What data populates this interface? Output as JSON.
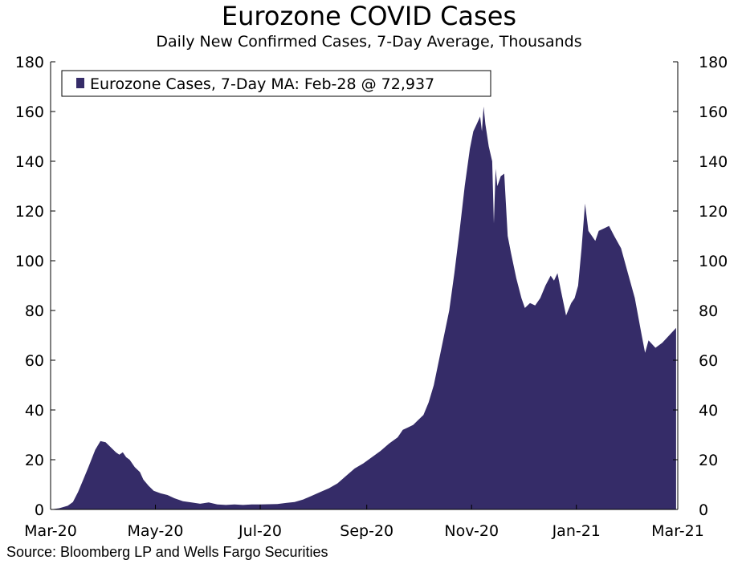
{
  "chart_data": {
    "type": "area",
    "title": "Eurozone COVID Cases",
    "subtitle": "Daily New Confirmed Cases, 7-Day Average, Thousands",
    "source": "Source: Bloomberg LP and Wells Fargo Securities",
    "legend": {
      "label": "Eurozone Cases, 7-Day MA: Feb-28 @ 72,937",
      "placement": "top-left"
    },
    "color": "#352c68",
    "ylim": [
      0,
      180
    ],
    "yticks": [
      "0",
      "20",
      "40",
      "60",
      "80",
      "100",
      "120",
      "140",
      "160",
      "180"
    ],
    "xlim": [
      "2020-03-01",
      "2021-03-01"
    ],
    "xticks": [
      {
        "date": "2020-03-01",
        "label": "Mar-20"
      },
      {
        "date": "2020-05-01",
        "label": "May-20"
      },
      {
        "date": "2020-07-01",
        "label": "Jul-20"
      },
      {
        "date": "2020-09-01",
        "label": "Sep-20"
      },
      {
        "date": "2020-11-01",
        "label": "Nov-20"
      },
      {
        "date": "2021-01-01",
        "label": "Jan-21"
      },
      {
        "date": "2021-03-01",
        "label": "Mar-21"
      }
    ],
    "grid": false,
    "series": [
      {
        "name": "Eurozone Cases, 7-Day MA",
        "points": [
          [
            "2020-03-01",
            0
          ],
          [
            "2020-03-06",
            0.5
          ],
          [
            "2020-03-11",
            1.5
          ],
          [
            "2020-03-14",
            3
          ],
          [
            "2020-03-17",
            7
          ],
          [
            "2020-03-20",
            12
          ],
          [
            "2020-03-23",
            17
          ],
          [
            "2020-03-27",
            24
          ],
          [
            "2020-03-30",
            27.5
          ],
          [
            "2020-04-02",
            27
          ],
          [
            "2020-04-05",
            25
          ],
          [
            "2020-04-08",
            23
          ],
          [
            "2020-04-10",
            22
          ],
          [
            "2020-04-12",
            23
          ],
          [
            "2020-04-14",
            21
          ],
          [
            "2020-04-16",
            20
          ],
          [
            "2020-04-19",
            17
          ],
          [
            "2020-04-22",
            15
          ],
          [
            "2020-04-24",
            12
          ],
          [
            "2020-04-27",
            9.5
          ],
          [
            "2020-04-30",
            7.5
          ],
          [
            "2020-05-04",
            6.5
          ],
          [
            "2020-05-08",
            5.8
          ],
          [
            "2020-05-12",
            4.5
          ],
          [
            "2020-05-17",
            3.3
          ],
          [
            "2020-05-22",
            2.8
          ],
          [
            "2020-05-27",
            2.3
          ],
          [
            "2020-06-01",
            2.8
          ],
          [
            "2020-06-06",
            2.0
          ],
          [
            "2020-06-11",
            1.8
          ],
          [
            "2020-06-16",
            2.0
          ],
          [
            "2020-06-21",
            1.8
          ],
          [
            "2020-06-26",
            2.0
          ],
          [
            "2020-07-01",
            2.0
          ],
          [
            "2020-07-06",
            2.1
          ],
          [
            "2020-07-11",
            2.2
          ],
          [
            "2020-07-16",
            2.6
          ],
          [
            "2020-07-21",
            3.0
          ],
          [
            "2020-07-26",
            4.0
          ],
          [
            "2020-07-31",
            5.5
          ],
          [
            "2020-08-05",
            7.0
          ],
          [
            "2020-08-10",
            8.5
          ],
          [
            "2020-08-15",
            10.5
          ],
          [
            "2020-08-20",
            13.5
          ],
          [
            "2020-08-25",
            16.5
          ],
          [
            "2020-08-30",
            18.5
          ],
          [
            "2020-09-04",
            21
          ],
          [
            "2020-09-09",
            23.5
          ],
          [
            "2020-09-14",
            26.5
          ],
          [
            "2020-09-19",
            29
          ],
          [
            "2020-09-22",
            32
          ],
          [
            "2020-09-25",
            33
          ],
          [
            "2020-09-28",
            34
          ],
          [
            "2020-10-01",
            36
          ],
          [
            "2020-10-04",
            38
          ],
          [
            "2020-10-07",
            43
          ],
          [
            "2020-10-10",
            50
          ],
          [
            "2020-10-13",
            60
          ],
          [
            "2020-10-16",
            70
          ],
          [
            "2020-10-19",
            80
          ],
          [
            "2020-10-22",
            95
          ],
          [
            "2020-10-25",
            112
          ],
          [
            "2020-10-28",
            130
          ],
          [
            "2020-10-31",
            145
          ],
          [
            "2020-11-02",
            152
          ],
          [
            "2020-11-04",
            155
          ],
          [
            "2020-11-06",
            158
          ],
          [
            "2020-11-07",
            152
          ],
          [
            "2020-11-08",
            162
          ],
          [
            "2020-11-09",
            155
          ],
          [
            "2020-11-11",
            146
          ],
          [
            "2020-11-13",
            140
          ],
          [
            "2020-11-14",
            115
          ],
          [
            "2020-11-15",
            137
          ],
          [
            "2020-11-16",
            130
          ],
          [
            "2020-11-18",
            134
          ],
          [
            "2020-11-20",
            135
          ],
          [
            "2020-11-22",
            110
          ],
          [
            "2020-11-24",
            103
          ],
          [
            "2020-11-27",
            93
          ],
          [
            "2020-11-30",
            85
          ],
          [
            "2020-12-02",
            81
          ],
          [
            "2020-12-05",
            83
          ],
          [
            "2020-12-08",
            82
          ],
          [
            "2020-12-11",
            85
          ],
          [
            "2020-12-14",
            90
          ],
          [
            "2020-12-17",
            94
          ],
          [
            "2020-12-19",
            92
          ],
          [
            "2020-12-21",
            95
          ],
          [
            "2020-12-23",
            88
          ],
          [
            "2020-12-26",
            78
          ],
          [
            "2020-12-29",
            83
          ],
          [
            "2020-12-31",
            85
          ],
          [
            "2021-01-02",
            90
          ],
          [
            "2021-01-04",
            105
          ],
          [
            "2021-01-06",
            123
          ],
          [
            "2021-01-08",
            112
          ],
          [
            "2021-01-10",
            110
          ],
          [
            "2021-01-12",
            108
          ],
          [
            "2021-01-14",
            112
          ],
          [
            "2021-01-17",
            113
          ],
          [
            "2021-01-20",
            114
          ],
          [
            "2021-01-23",
            110
          ],
          [
            "2021-01-27",
            105
          ],
          [
            "2021-01-31",
            95
          ],
          [
            "2021-02-04",
            85
          ],
          [
            "2021-02-08",
            70
          ],
          [
            "2021-02-10",
            63
          ],
          [
            "2021-02-12",
            68
          ],
          [
            "2021-02-16",
            65
          ],
          [
            "2021-02-20",
            67
          ],
          [
            "2021-02-24",
            70
          ],
          [
            "2021-02-28",
            73
          ]
        ]
      }
    ]
  }
}
